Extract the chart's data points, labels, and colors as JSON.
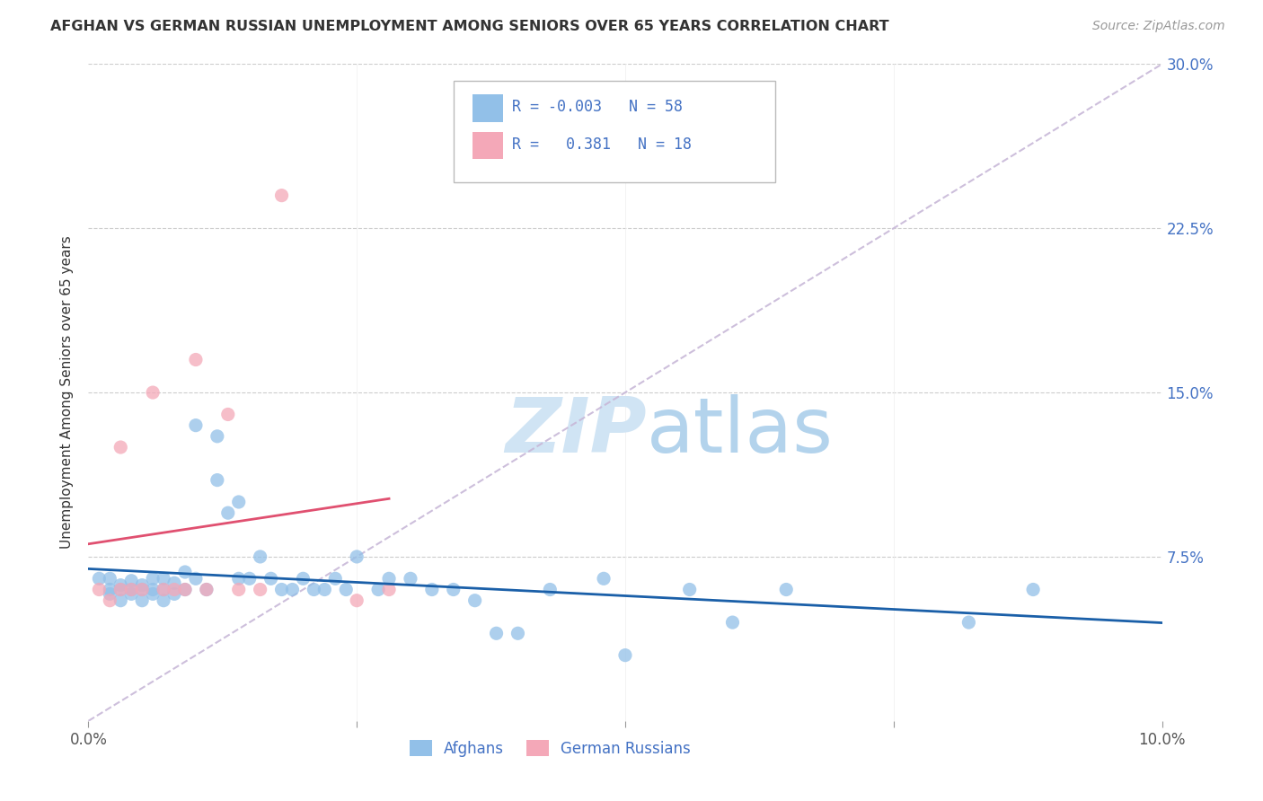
{
  "title": "AFGHAN VS GERMAN RUSSIAN UNEMPLOYMENT AMONG SENIORS OVER 65 YEARS CORRELATION CHART",
  "source": "Source: ZipAtlas.com",
  "ylabel": "Unemployment Among Seniors over 65 years",
  "xlim": [
    0.0,
    0.1
  ],
  "ylim": [
    0.0,
    0.3
  ],
  "xticks": [
    0.0,
    0.025,
    0.05,
    0.075,
    0.1
  ],
  "xticklabels": [
    "0.0%",
    "",
    "",
    "",
    "10.0%"
  ],
  "yticks": [
    0.0,
    0.075,
    0.15,
    0.225,
    0.3
  ],
  "yticklabels": [
    "",
    "7.5%",
    "15.0%",
    "22.5%",
    "30.0%"
  ],
  "afghan_R": "-0.003",
  "afghan_N": "58",
  "german_russian_R": "0.381",
  "german_russian_N": "18",
  "afghan_color": "#92c0e8",
  "german_russian_color": "#f4a8b8",
  "afghan_line_color": "#1a5fa8",
  "german_russian_line_color": "#e05070",
  "diagonal_color": "#c8b8d8",
  "watermark_color": "#d0e4f4",
  "legend_afghan": "Afghans",
  "legend_german_russian": "German Russians",
  "afghan_x": [
    0.001,
    0.002,
    0.002,
    0.002,
    0.003,
    0.003,
    0.003,
    0.004,
    0.004,
    0.004,
    0.005,
    0.005,
    0.005,
    0.006,
    0.006,
    0.006,
    0.007,
    0.007,
    0.007,
    0.008,
    0.008,
    0.009,
    0.009,
    0.01,
    0.01,
    0.011,
    0.012,
    0.012,
    0.013,
    0.014,
    0.014,
    0.015,
    0.016,
    0.017,
    0.018,
    0.019,
    0.02,
    0.021,
    0.022,
    0.023,
    0.024,
    0.025,
    0.027,
    0.028,
    0.03,
    0.032,
    0.034,
    0.036,
    0.038,
    0.04,
    0.043,
    0.048,
    0.05,
    0.056,
    0.06,
    0.065,
    0.082,
    0.088
  ],
  "afghan_y": [
    0.065,
    0.065,
    0.058,
    0.06,
    0.06,
    0.062,
    0.055,
    0.06,
    0.058,
    0.064,
    0.062,
    0.055,
    0.06,
    0.058,
    0.06,
    0.065,
    0.055,
    0.06,
    0.065,
    0.058,
    0.063,
    0.068,
    0.06,
    0.065,
    0.135,
    0.06,
    0.13,
    0.11,
    0.095,
    0.1,
    0.065,
    0.065,
    0.075,
    0.065,
    0.06,
    0.06,
    0.065,
    0.06,
    0.06,
    0.065,
    0.06,
    0.075,
    0.06,
    0.065,
    0.065,
    0.06,
    0.06,
    0.055,
    0.04,
    0.04,
    0.06,
    0.065,
    0.03,
    0.06,
    0.045,
    0.06,
    0.045,
    0.06
  ],
  "german_russian_x": [
    0.001,
    0.002,
    0.003,
    0.003,
    0.004,
    0.005,
    0.006,
    0.007,
    0.008,
    0.009,
    0.01,
    0.011,
    0.013,
    0.014,
    0.016,
    0.018,
    0.025,
    0.028
  ],
  "german_russian_y": [
    0.06,
    0.055,
    0.06,
    0.125,
    0.06,
    0.06,
    0.15,
    0.06,
    0.06,
    0.06,
    0.165,
    0.06,
    0.14,
    0.06,
    0.06,
    0.24,
    0.055,
    0.06
  ]
}
